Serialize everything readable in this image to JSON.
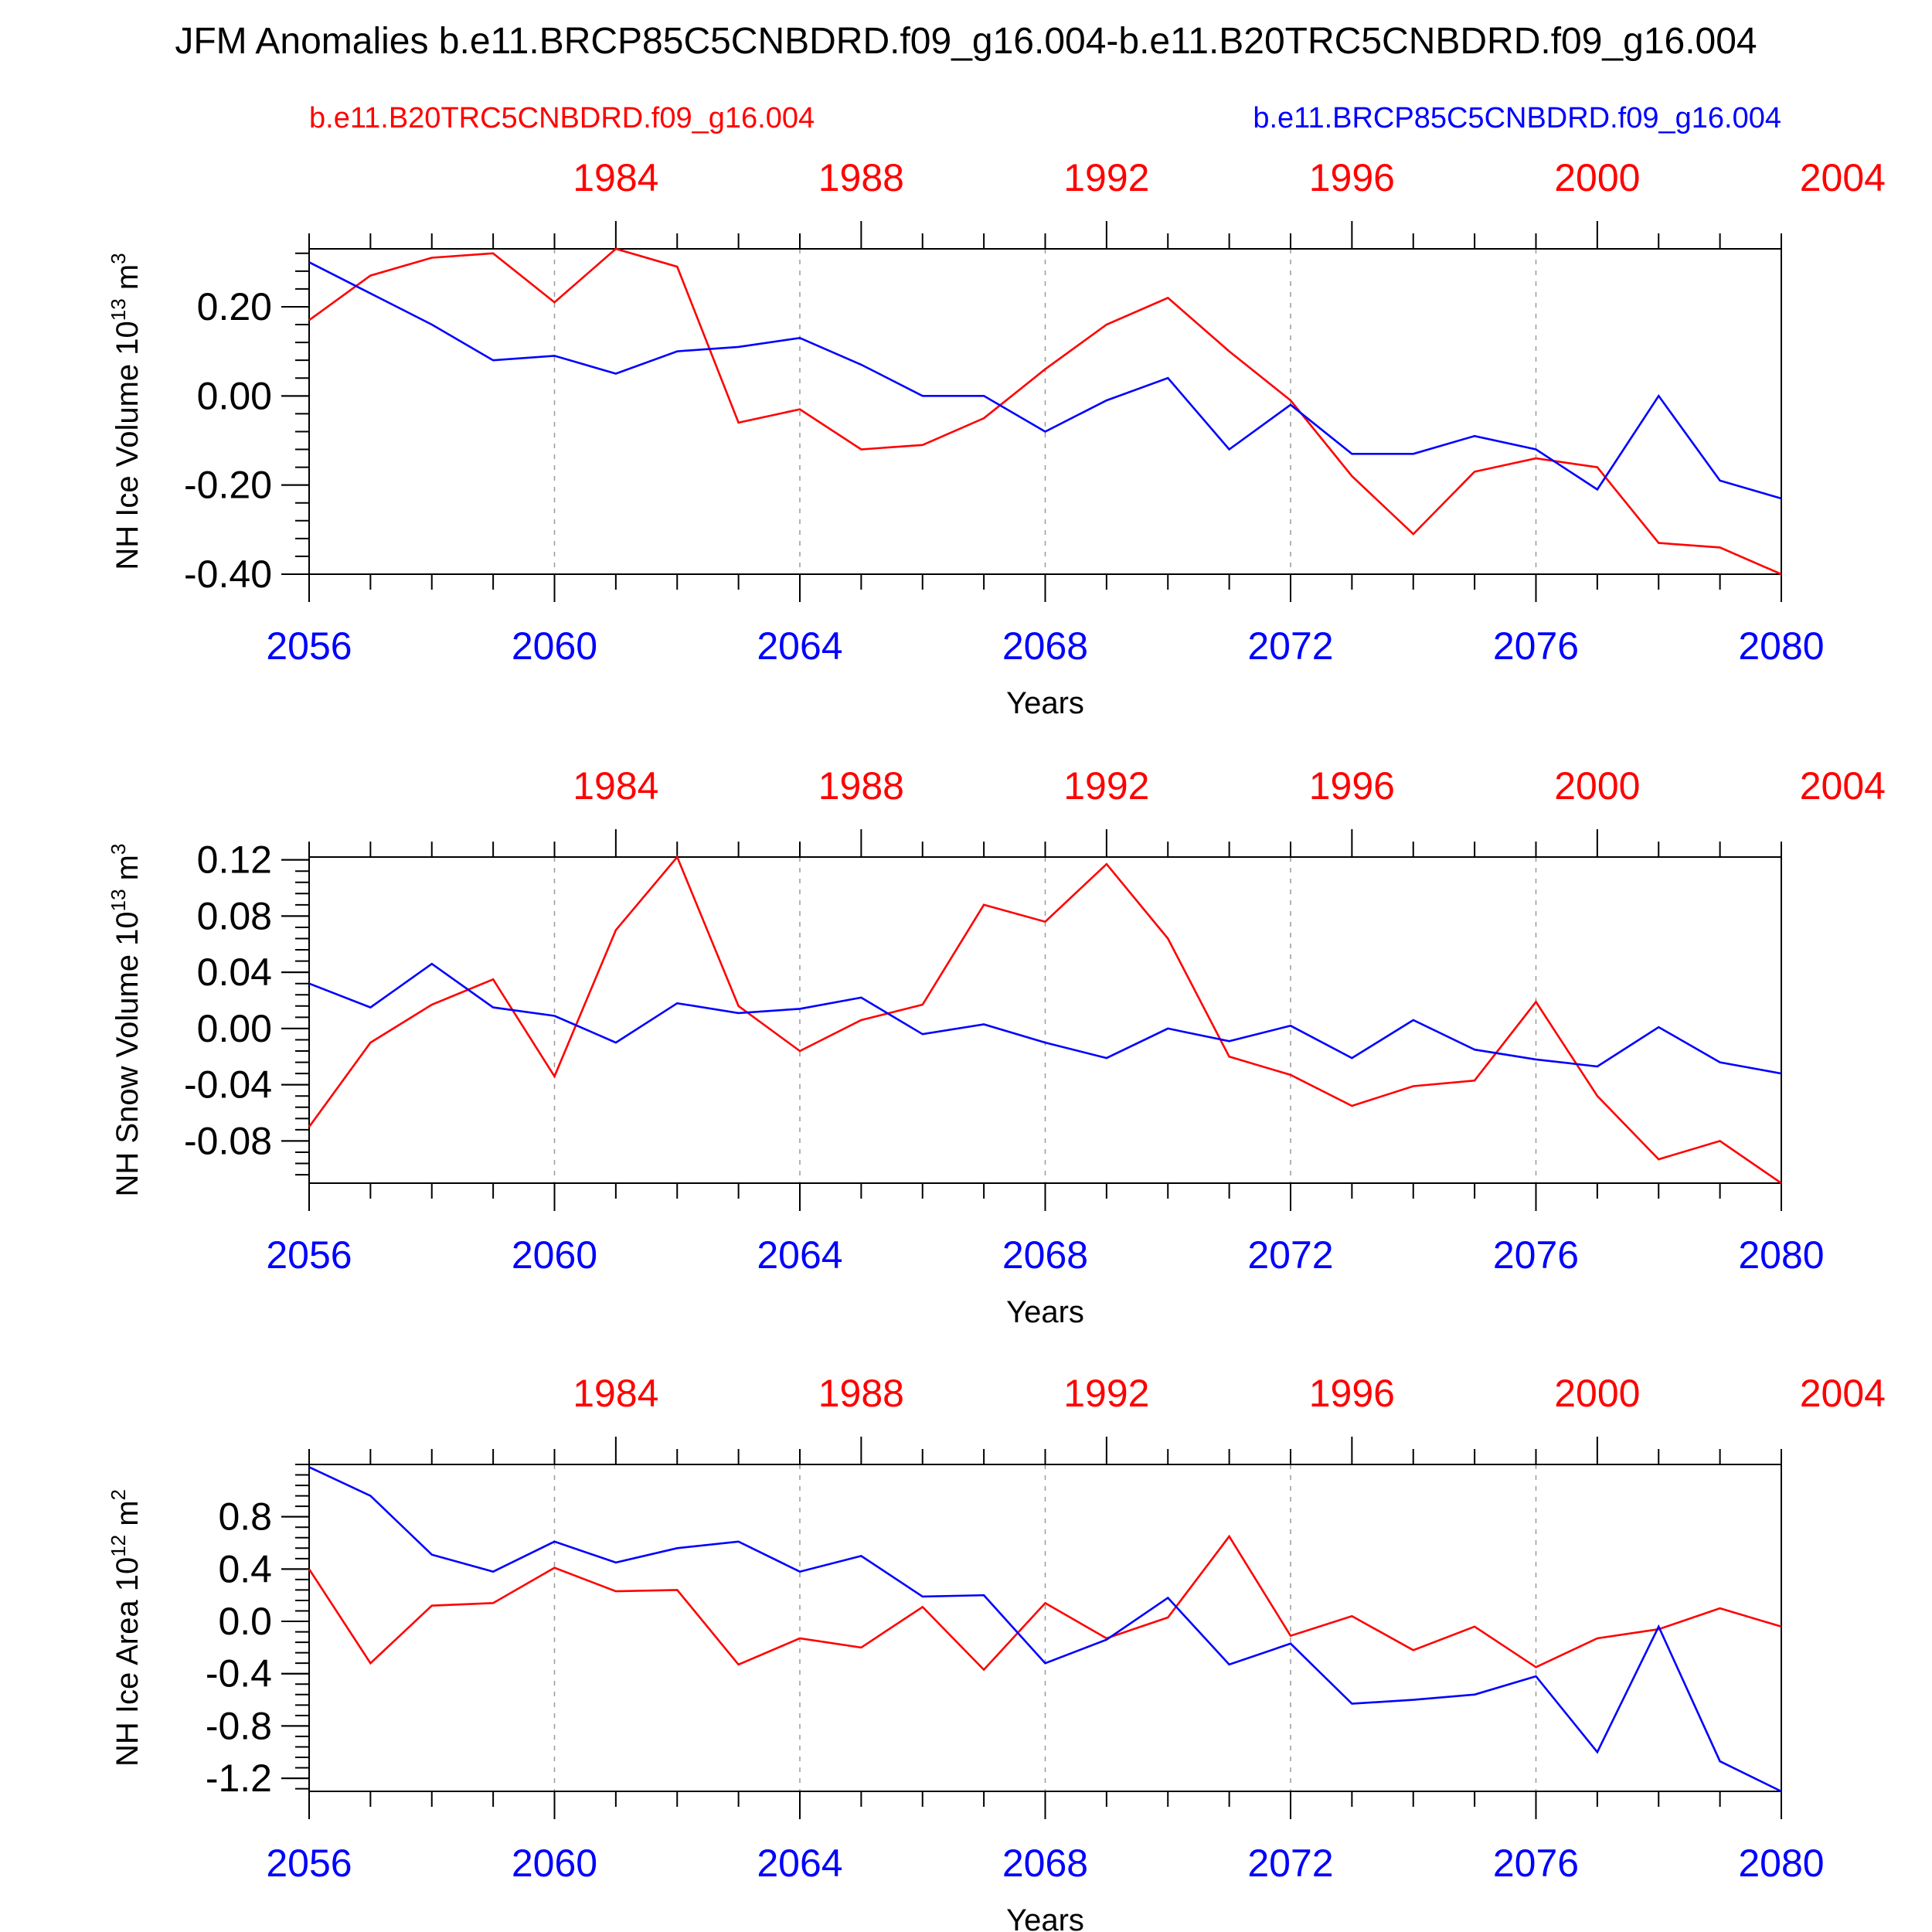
{
  "title": "JFM Anomalies b.e11.BRCP85C5CNBDRD.f09_g16.004-b.e11.B20TRC5CNBDRD.f09_g16.004",
  "legend": {
    "red_label": "b.e11.B20TRC5CNBDRD.f09_g16.004",
    "blue_label": "b.e11.BRCP85C5CNBDRD.f09_g16.004"
  },
  "colors": {
    "red": "#ff0000",
    "blue": "#0000ff",
    "axis": "#000000",
    "grid": "#999999"
  },
  "chart_data": [
    {
      "type": "line",
      "ylabel": "NH Ice Volume 10",
      "ylabel_exp": "13",
      "ylabel_unit": " m",
      "ylabel_unit_exp": "3",
      "xlabel": "Years",
      "ylim": [
        -0.4,
        0.33
      ],
      "yticks": [
        -0.4,
        -0.2,
        0.0,
        0.2
      ],
      "ytick_labels": [
        "-0.40",
        "-0.20",
        "0.00",
        "0.20"
      ],
      "yminor_step": 0.04,
      "x": [
        2056,
        2057,
        2058,
        2059,
        2060,
        2061,
        2062,
        2063,
        2064,
        2065,
        2066,
        2067,
        2068,
        2069,
        2070,
        2071,
        2072,
        2073,
        2074,
        2075,
        2076,
        2077,
        2078,
        2079,
        2080
      ],
      "bottom_ticks": [
        2056,
        2060,
        2064,
        2068,
        2072,
        2076,
        2080
      ],
      "top_ticks": [
        1984,
        1988,
        1992,
        1996,
        2000,
        2004
      ],
      "top_offset": 77,
      "series": [
        {
          "name": "b.e11.B20TRC5CNBDRD.f09_g16.004",
          "color": "#ff0000",
          "values": [
            0.17,
            0.27,
            0.31,
            0.32,
            0.21,
            0.33,
            0.29,
            -0.06,
            -0.03,
            -0.12,
            -0.11,
            -0.05,
            0.06,
            0.16,
            0.22,
            0.1,
            -0.01,
            -0.18,
            -0.31,
            -0.17,
            -0.14,
            -0.16,
            -0.33,
            -0.34,
            -0.4
          ]
        },
        {
          "name": "b.e11.BRCP85C5CNBDRD.f09_g16.004",
          "color": "#0000ff",
          "values": [
            0.3,
            0.23,
            0.16,
            0.08,
            0.09,
            0.05,
            0.1,
            0.11,
            0.13,
            0.07,
            0.0,
            0.0,
            -0.08,
            -0.01,
            0.04,
            -0.12,
            -0.02,
            -0.13,
            -0.13,
            -0.09,
            -0.12,
            -0.21,
            0.0,
            -0.19,
            -0.23
          ]
        }
      ]
    },
    {
      "type": "line",
      "ylabel": "NH Snow Volume 10",
      "ylabel_exp": "13",
      "ylabel_unit": " m",
      "ylabel_unit_exp": "3",
      "xlabel": "Years",
      "ylim": [
        -0.11,
        0.122
      ],
      "yticks": [
        -0.08,
        -0.04,
        0.0,
        0.04,
        0.08,
        0.12
      ],
      "ytick_labels": [
        "-0.08",
        "-0.04",
        "0.00",
        "0.04",
        "0.08",
        "0.12"
      ],
      "yminor_step": 0.008,
      "x": [
        2056,
        2057,
        2058,
        2059,
        2060,
        2061,
        2062,
        2063,
        2064,
        2065,
        2066,
        2067,
        2068,
        2069,
        2070,
        2071,
        2072,
        2073,
        2074,
        2075,
        2076,
        2077,
        2078,
        2079,
        2080
      ],
      "bottom_ticks": [
        2056,
        2060,
        2064,
        2068,
        2072,
        2076,
        2080
      ],
      "top_ticks": [
        1984,
        1988,
        1992,
        1996,
        2000,
        2004
      ],
      "top_offset": 77,
      "series": [
        {
          "name": "b.e11.B20TRC5CNBDRD.f09_g16.004",
          "color": "#ff0000",
          "values": [
            -0.07,
            -0.01,
            0.017,
            0.035,
            -0.034,
            0.07,
            0.122,
            0.016,
            -0.016,
            0.006,
            0.017,
            0.088,
            0.076,
            0.117,
            0.064,
            -0.02,
            -0.033,
            -0.055,
            -0.041,
            -0.037,
            0.019,
            -0.048,
            -0.093,
            -0.08,
            -0.11
          ]
        },
        {
          "name": "b.e11.BRCP85C5CNBDRD.f09_g16.004",
          "color": "#0000ff",
          "values": [
            0.032,
            0.015,
            0.046,
            0.015,
            0.009,
            -0.01,
            0.018,
            0.011,
            0.014,
            0.022,
            -0.004,
            0.003,
            -0.01,
            -0.021,
            0.0,
            -0.009,
            0.002,
            -0.021,
            0.006,
            -0.015,
            -0.022,
            -0.027,
            0.001,
            -0.024,
            -0.032
          ]
        }
      ]
    },
    {
      "type": "line",
      "ylabel": "NH Ice Area 10",
      "ylabel_exp": "12",
      "ylabel_unit": " m",
      "ylabel_unit_exp": "2",
      "xlabel": "Years",
      "ylim": [
        -1.3,
        1.2
      ],
      "yticks": [
        -1.2,
        -0.8,
        -0.4,
        0.0,
        0.4,
        0.8
      ],
      "ytick_labels": [
        "-1.2",
        "-0.8",
        "-0.4",
        "0.0",
        "0.4",
        "0.8"
      ],
      "yminor_step": 0.08,
      "x": [
        2056,
        2057,
        2058,
        2059,
        2060,
        2061,
        2062,
        2063,
        2064,
        2065,
        2066,
        2067,
        2068,
        2069,
        2070,
        2071,
        2072,
        2073,
        2074,
        2075,
        2076,
        2077,
        2078,
        2079,
        2080
      ],
      "bottom_ticks": [
        2056,
        2060,
        2064,
        2068,
        2072,
        2076,
        2080
      ],
      "top_ticks": [
        1984,
        1988,
        1992,
        1996,
        2000,
        2004
      ],
      "top_offset": 77,
      "series": [
        {
          "name": "b.e11.B20TRC5CNBDRD.f09_g16.004",
          "color": "#ff0000",
          "values": [
            0.4,
            -0.32,
            0.12,
            0.14,
            0.41,
            0.23,
            0.24,
            -0.33,
            -0.13,
            -0.2,
            0.11,
            -0.37,
            0.14,
            -0.13,
            0.03,
            0.65,
            -0.11,
            0.04,
            -0.22,
            -0.04,
            -0.35,
            -0.13,
            -0.06,
            0.1,
            -0.04
          ]
        },
        {
          "name": "b.e11.BRCP85C5CNBDRD.f09_g16.004",
          "color": "#0000ff",
          "values": [
            1.18,
            0.96,
            0.51,
            0.38,
            0.61,
            0.45,
            0.56,
            0.61,
            0.38,
            0.5,
            0.19,
            0.2,
            -0.32,
            -0.14,
            0.18,
            -0.33,
            -0.17,
            -0.63,
            -0.6,
            -0.56,
            -0.42,
            -1.0,
            -0.04,
            -1.07,
            -1.3
          ]
        }
      ]
    }
  ]
}
